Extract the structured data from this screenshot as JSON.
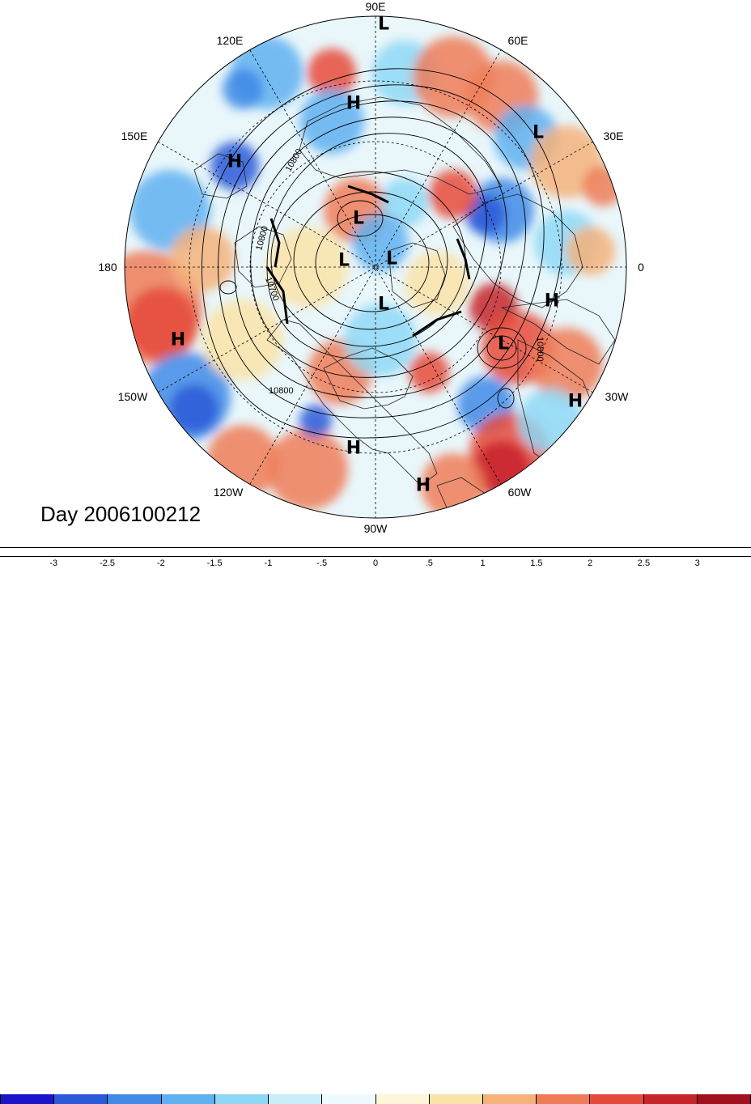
{
  "title": "Day 2006100212",
  "longitude_labels": {
    "lon_90e": "90E",
    "lon_60e": "60E",
    "lon_30e": "30E",
    "lon_0": "0",
    "lon_30w": "30W",
    "lon_60w": "60W",
    "lon_90w": "90W",
    "lon_120w": "120W",
    "lon_150w": "150W",
    "lon_180": "180",
    "lon_150e": "150E",
    "lon_120e": "120E"
  },
  "pressure_centers": [
    {
      "label": "L"
    },
    {
      "label": "H"
    },
    {
      "label": "L"
    },
    {
      "label": "H"
    },
    {
      "label": "L"
    },
    {
      "label": "L"
    },
    {
      "label": "L"
    },
    {
      "label": "L"
    },
    {
      "label": "H"
    },
    {
      "label": "H"
    },
    {
      "label": "L"
    },
    {
      "label": "H"
    },
    {
      "label": "H"
    },
    {
      "label": "H"
    }
  ],
  "contour_labels": {
    "c1": "10800",
    "c2": "10800",
    "c3": "10700",
    "c4": "10800",
    "c5": "10800"
  },
  "colorbar": {
    "colors": [
      "#1a14c8",
      "#2a5ad8",
      "#3f8ae6",
      "#5fb0f0",
      "#8ed8f6",
      "#c9eefa",
      "#eefafd",
      "#fdf6d8",
      "#fae3a8",
      "#f5b27a",
      "#ef7c58",
      "#e64a3a",
      "#c8242b",
      "#a0101e"
    ],
    "ticks": [
      "-3",
      "-2.5",
      "-2",
      "-1.5",
      "-1",
      "-.5",
      "0",
      ".5",
      "1",
      "1.5",
      "2",
      "2.5",
      "3"
    ]
  },
  "colors": {
    "ocean_neutral": "#dff3f8",
    "coast": "#222222"
  }
}
